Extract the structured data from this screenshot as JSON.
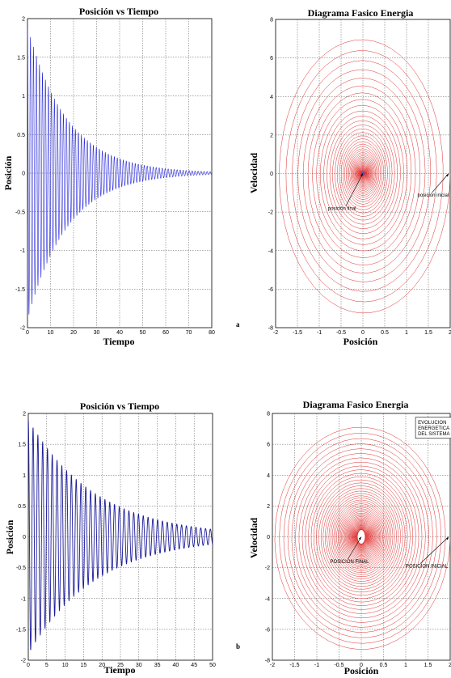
{
  "panels": {
    "a": "a",
    "b": "b"
  },
  "chart_data": [
    {
      "type": "line",
      "title": "Posición vs Tiempo",
      "xlabel": "Tiempo",
      "ylabel": "Posición",
      "xlim": [
        0,
        80
      ],
      "ylim": [
        -2,
        2
      ],
      "xticks": [
        "0",
        "10",
        "20",
        "30",
        "40",
        "50",
        "60",
        "70",
        "80"
      ],
      "yticks": [
        "2",
        "1.5",
        "1",
        "0.5",
        "0",
        "-0.5",
        "-1",
        "-1.5",
        "-2"
      ],
      "grid": true,
      "color": "#2a2ad8",
      "series": [
        {
          "amplitude_initial": 1.9,
          "decay_rate": 0.058,
          "period": 1.3,
          "x_end": 80
        }
      ]
    },
    {
      "type": "line",
      "title": "Diagrama Fasico Energia",
      "xlabel": "Posición",
      "ylabel": "Velocidad",
      "xlim": [
        -2,
        2
      ],
      "ylim": [
        -8,
        8
      ],
      "xticks": [
        "-2",
        "-1.5",
        "-1",
        "-0.5",
        "0",
        "0.5",
        "1",
        "1.5",
        "2"
      ],
      "yticks": [
        "8",
        "6",
        "4",
        "2",
        "0",
        "-2",
        "-4",
        "-6",
        "-8"
      ],
      "grid": true,
      "color": "#e03030",
      "series": [
        {
          "x_amplitude_initial": 2.0,
          "v_amplitude_initial": 7.4,
          "decay_rate": 0.058,
          "x_end": 80
        }
      ],
      "annotations": [
        {
          "text": "posición final",
          "x": -0.8,
          "y": -1.9
        },
        {
          "text": "posición inicial",
          "x": 1.25,
          "y": -1.2
        }
      ]
    },
    {
      "type": "line",
      "title": "Posición vs Tiempo",
      "xlabel": "Tiempo",
      "ylabel": "Posición",
      "xlim": [
        0,
        50
      ],
      "ylim": [
        -2,
        2
      ],
      "xticks": [
        "0",
        "5",
        "10",
        "15",
        "20",
        "25",
        "30",
        "35",
        "40",
        "45",
        "50"
      ],
      "yticks": [
        "2",
        "1.5",
        "1",
        "0.5",
        "0",
        "-0.5",
        "-1",
        "-1.5",
        "-2"
      ],
      "grid": true,
      "color": "#1a1a9a",
      "series": [
        {
          "amplitude_initial": 1.9,
          "decay_rate": 0.055,
          "period": 1.3,
          "x_end": 50
        }
      ]
    },
    {
      "type": "line",
      "title": "Diagrama Fasico Energia",
      "xlabel": "Posición",
      "ylabel": "Velocidad",
      "xlim": [
        -2,
        2
      ],
      "ylim": [
        -8,
        8
      ],
      "xticks": [
        "-2",
        "-1.5",
        "-1",
        "-0.5",
        "0",
        "0.5",
        "1",
        "1.5",
        "2"
      ],
      "yticks": [
        "8",
        "6",
        "4",
        "2",
        "0",
        "-2",
        "-4",
        "-6",
        "-8"
      ],
      "grid": true,
      "color": "#e03030",
      "series": [
        {
          "x_amplitude_initial": 2.0,
          "v_amplitude_initial": 7.4,
          "decay_rate": 0.06,
          "x_end": 50
        }
      ],
      "annotations": [
        {
          "text": "POSICION FINAL",
          "x": -0.7,
          "y": -1.7
        },
        {
          "text": "POSICION INICIAL",
          "x": 1.0,
          "y": -2.0
        }
      ],
      "legend_box": [
        "EVOLUCION",
        "ENERGETICA",
        "DEL SISTEMA"
      ]
    }
  ]
}
